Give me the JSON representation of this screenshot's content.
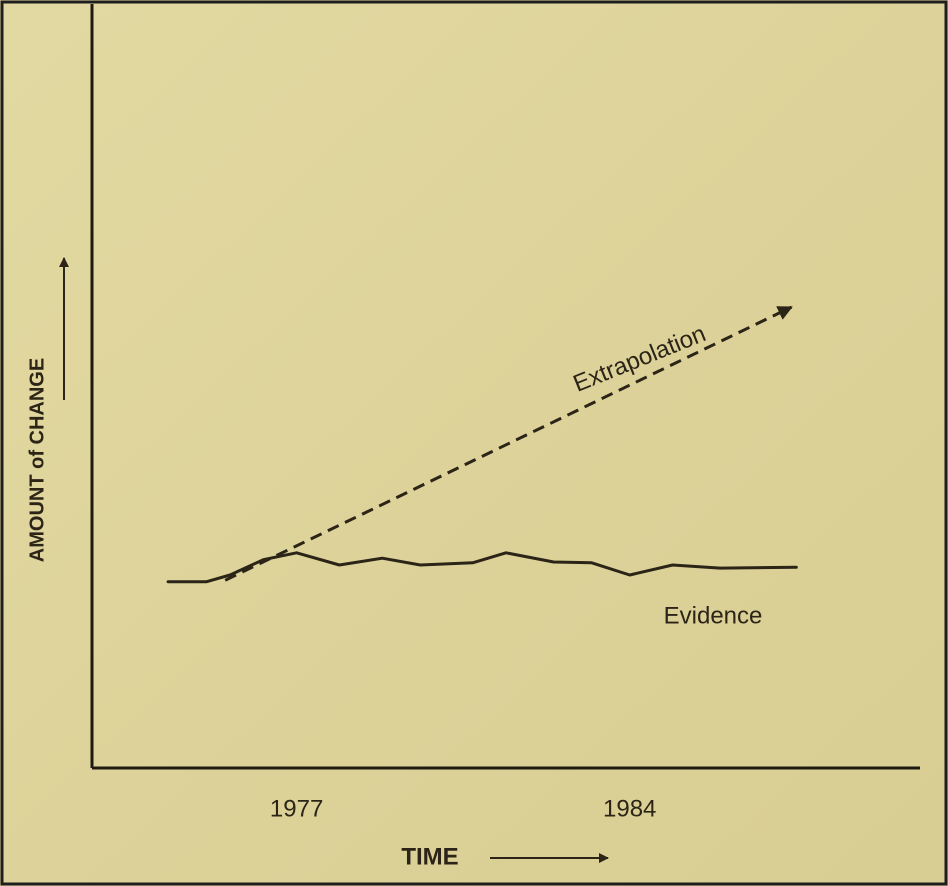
{
  "chart_data": {
    "type": "line",
    "x_label": "TIME",
    "y_label": "AMOUNT of CHANGE",
    "xlim": [
      1972.7,
      1990.1
    ],
    "xticks": [
      1977,
      1984
    ],
    "ylim": [
      0,
      100
    ],
    "series": [
      {
        "name": "Evidence",
        "color": "#2b2417",
        "dashed": false,
        "x": [
          1974.3,
          1975.1,
          1975.6,
          1976.3,
          1977.0,
          1977.9,
          1978.8,
          1979.6,
          1980.7,
          1981.4,
          1982.4,
          1983.2,
          1984.0,
          1984.9,
          1985.9,
          1987.5
        ],
        "values": [
          24.4,
          24.4,
          25.3,
          27.3,
          28.2,
          26.6,
          27.5,
          26.6,
          26.9,
          28.2,
          27.0,
          26.9,
          25.3,
          26.6,
          26.2,
          26.3
        ]
      },
      {
        "name": "Extrapolation",
        "color": "#2b2417",
        "dashed": true,
        "x": [
          1975.5,
          1987.4
        ],
        "values": [
          24.6,
          60.4
        ]
      }
    ]
  }
}
